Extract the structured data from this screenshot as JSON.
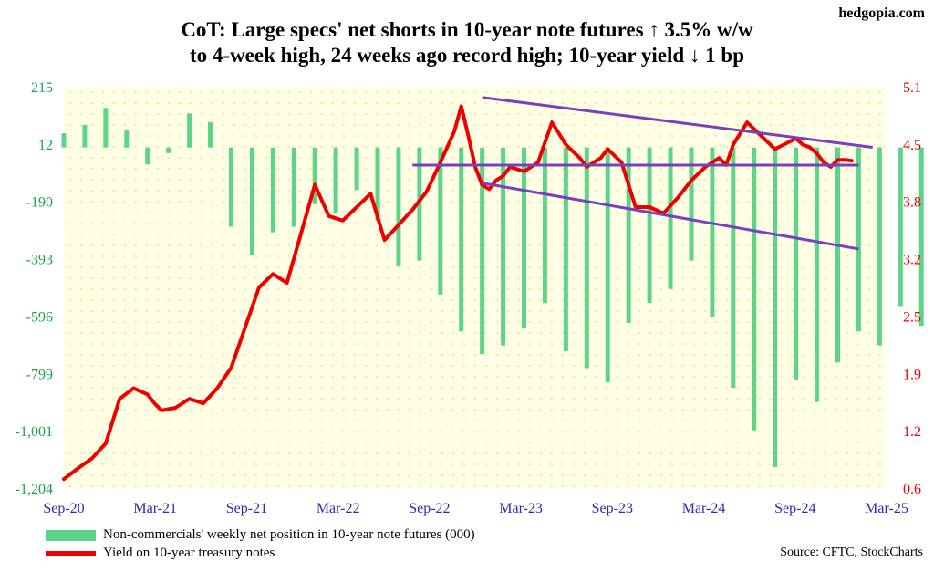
{
  "site": "hedgopia.com",
  "title_line1": "CoT: Large specs' net shorts in 10-year note futures ↑ 3.5% w/w",
  "title_line2": "to 4-week high, 24 weeks ago record high; 10-year yield ↓ 1 bp",
  "source": "Source: CFTC, StockCharts",
  "legend": {
    "bars": "Non-commercials' weekly net position in 10-year note futures (000)",
    "line": "Yield on 10-year treasury notes"
  },
  "colors": {
    "bars": "#5ed38a",
    "line": "#ee0000",
    "trendlines": "#7a3fbf",
    "left_axis": "#19a34a",
    "right_axis": "#ee0000",
    "plot_bg": "#ffffe6",
    "dots": "#e8e89a"
  },
  "chart_data": {
    "type": "bar+line",
    "x_ticks": [
      "Sep-20",
      "Mar-21",
      "Sep-21",
      "Mar-22",
      "Sep-22",
      "Mar-23",
      "Sep-23",
      "Mar-24",
      "Sep-24",
      "Mar-25"
    ],
    "left_axis": {
      "ticks": [
        "215",
        "12",
        "-190",
        "-393",
        "-596",
        "-799",
        "-1,001",
        "-1,204"
      ],
      "range": [
        -1204,
        215
      ]
    },
    "right_axis": {
      "ticks": [
        "5.1",
        "4.5",
        "3.8",
        "3.2",
        "2.5",
        "1.9",
        "1.2",
        "0.6"
      ],
      "range": [
        0.6,
        5.1
      ]
    },
    "series": [
      {
        "name": "Non-commercials' weekly net position in 10-year note futures (000)",
        "kind": "bar",
        "axis": "left",
        "x": [
          0,
          6,
          12,
          18,
          24,
          30,
          36,
          42,
          48,
          54,
          60,
          66,
          72,
          78,
          84,
          90,
          96,
          102,
          108,
          114,
          120,
          126,
          132,
          138,
          144,
          150,
          156,
          162,
          168,
          174,
          180,
          186,
          192,
          198,
          204,
          210,
          216,
          222,
          228,
          234,
          240,
          246,
          252
        ],
        "values": [
          50,
          80,
          140,
          60,
          -60,
          -20,
          120,
          90,
          -280,
          -380,
          -300,
          -280,
          -200,
          -230,
          -150,
          -260,
          -420,
          -400,
          -520,
          -650,
          -730,
          -700,
          -640,
          -550,
          -720,
          -780,
          -830,
          -620,
          -550,
          -500,
          -400,
          -600,
          -850,
          -1000,
          -1130,
          -820,
          -900,
          -760,
          -650,
          -700,
          -560,
          -630,
          -740
        ]
      },
      {
        "name": "Yield on 10-year treasury notes",
        "kind": "line",
        "axis": "right",
        "x": [
          0,
          4,
          8,
          12,
          16,
          20,
          24,
          26,
          28,
          32,
          36,
          40,
          44,
          48,
          52,
          56,
          60,
          64,
          68,
          72,
          76,
          80,
          84,
          88,
          92,
          96,
          100,
          104,
          108,
          112,
          114,
          116,
          118,
          120,
          122,
          124,
          126,
          128,
          132,
          136,
          140,
          144,
          148,
          150,
          152,
          154,
          156,
          160,
          164,
          168,
          172,
          176,
          180,
          184,
          188,
          190,
          192,
          196,
          200,
          204,
          208,
          210,
          212,
          214,
          216,
          218,
          220,
          222,
          224,
          226
        ],
        "values": [
          0.7,
          0.82,
          0.93,
          1.1,
          1.6,
          1.72,
          1.65,
          1.55,
          1.47,
          1.5,
          1.6,
          1.55,
          1.72,
          1.95,
          2.4,
          2.85,
          3.0,
          2.9,
          3.45,
          4.0,
          3.65,
          3.6,
          3.75,
          3.9,
          3.38,
          3.55,
          3.72,
          3.92,
          4.25,
          4.6,
          4.88,
          4.55,
          4.2,
          4.0,
          3.95,
          4.05,
          4.1,
          4.2,
          4.15,
          4.25,
          4.7,
          4.45,
          4.3,
          4.2,
          4.25,
          4.3,
          4.4,
          4.25,
          3.75,
          3.75,
          3.68,
          3.85,
          4.05,
          4.2,
          4.3,
          4.22,
          4.45,
          4.7,
          4.55,
          4.4,
          4.48,
          4.52,
          4.45,
          4.42,
          4.35,
          4.25,
          4.2,
          4.28,
          4.28,
          4.27
        ]
      }
    ],
    "trendlines": [
      {
        "axis": "right",
        "from": [
          120,
          4.98
        ],
        "to": [
          232,
          4.42
        ]
      },
      {
        "axis": "right",
        "from": [
          100,
          4.22
        ],
        "to": [
          228,
          4.22
        ]
      },
      {
        "axis": "right",
        "from": [
          120,
          4.02
        ],
        "to": [
          228,
          3.28
        ]
      }
    ],
    "grid": "dotted",
    "legend_position": "bottom-left"
  }
}
